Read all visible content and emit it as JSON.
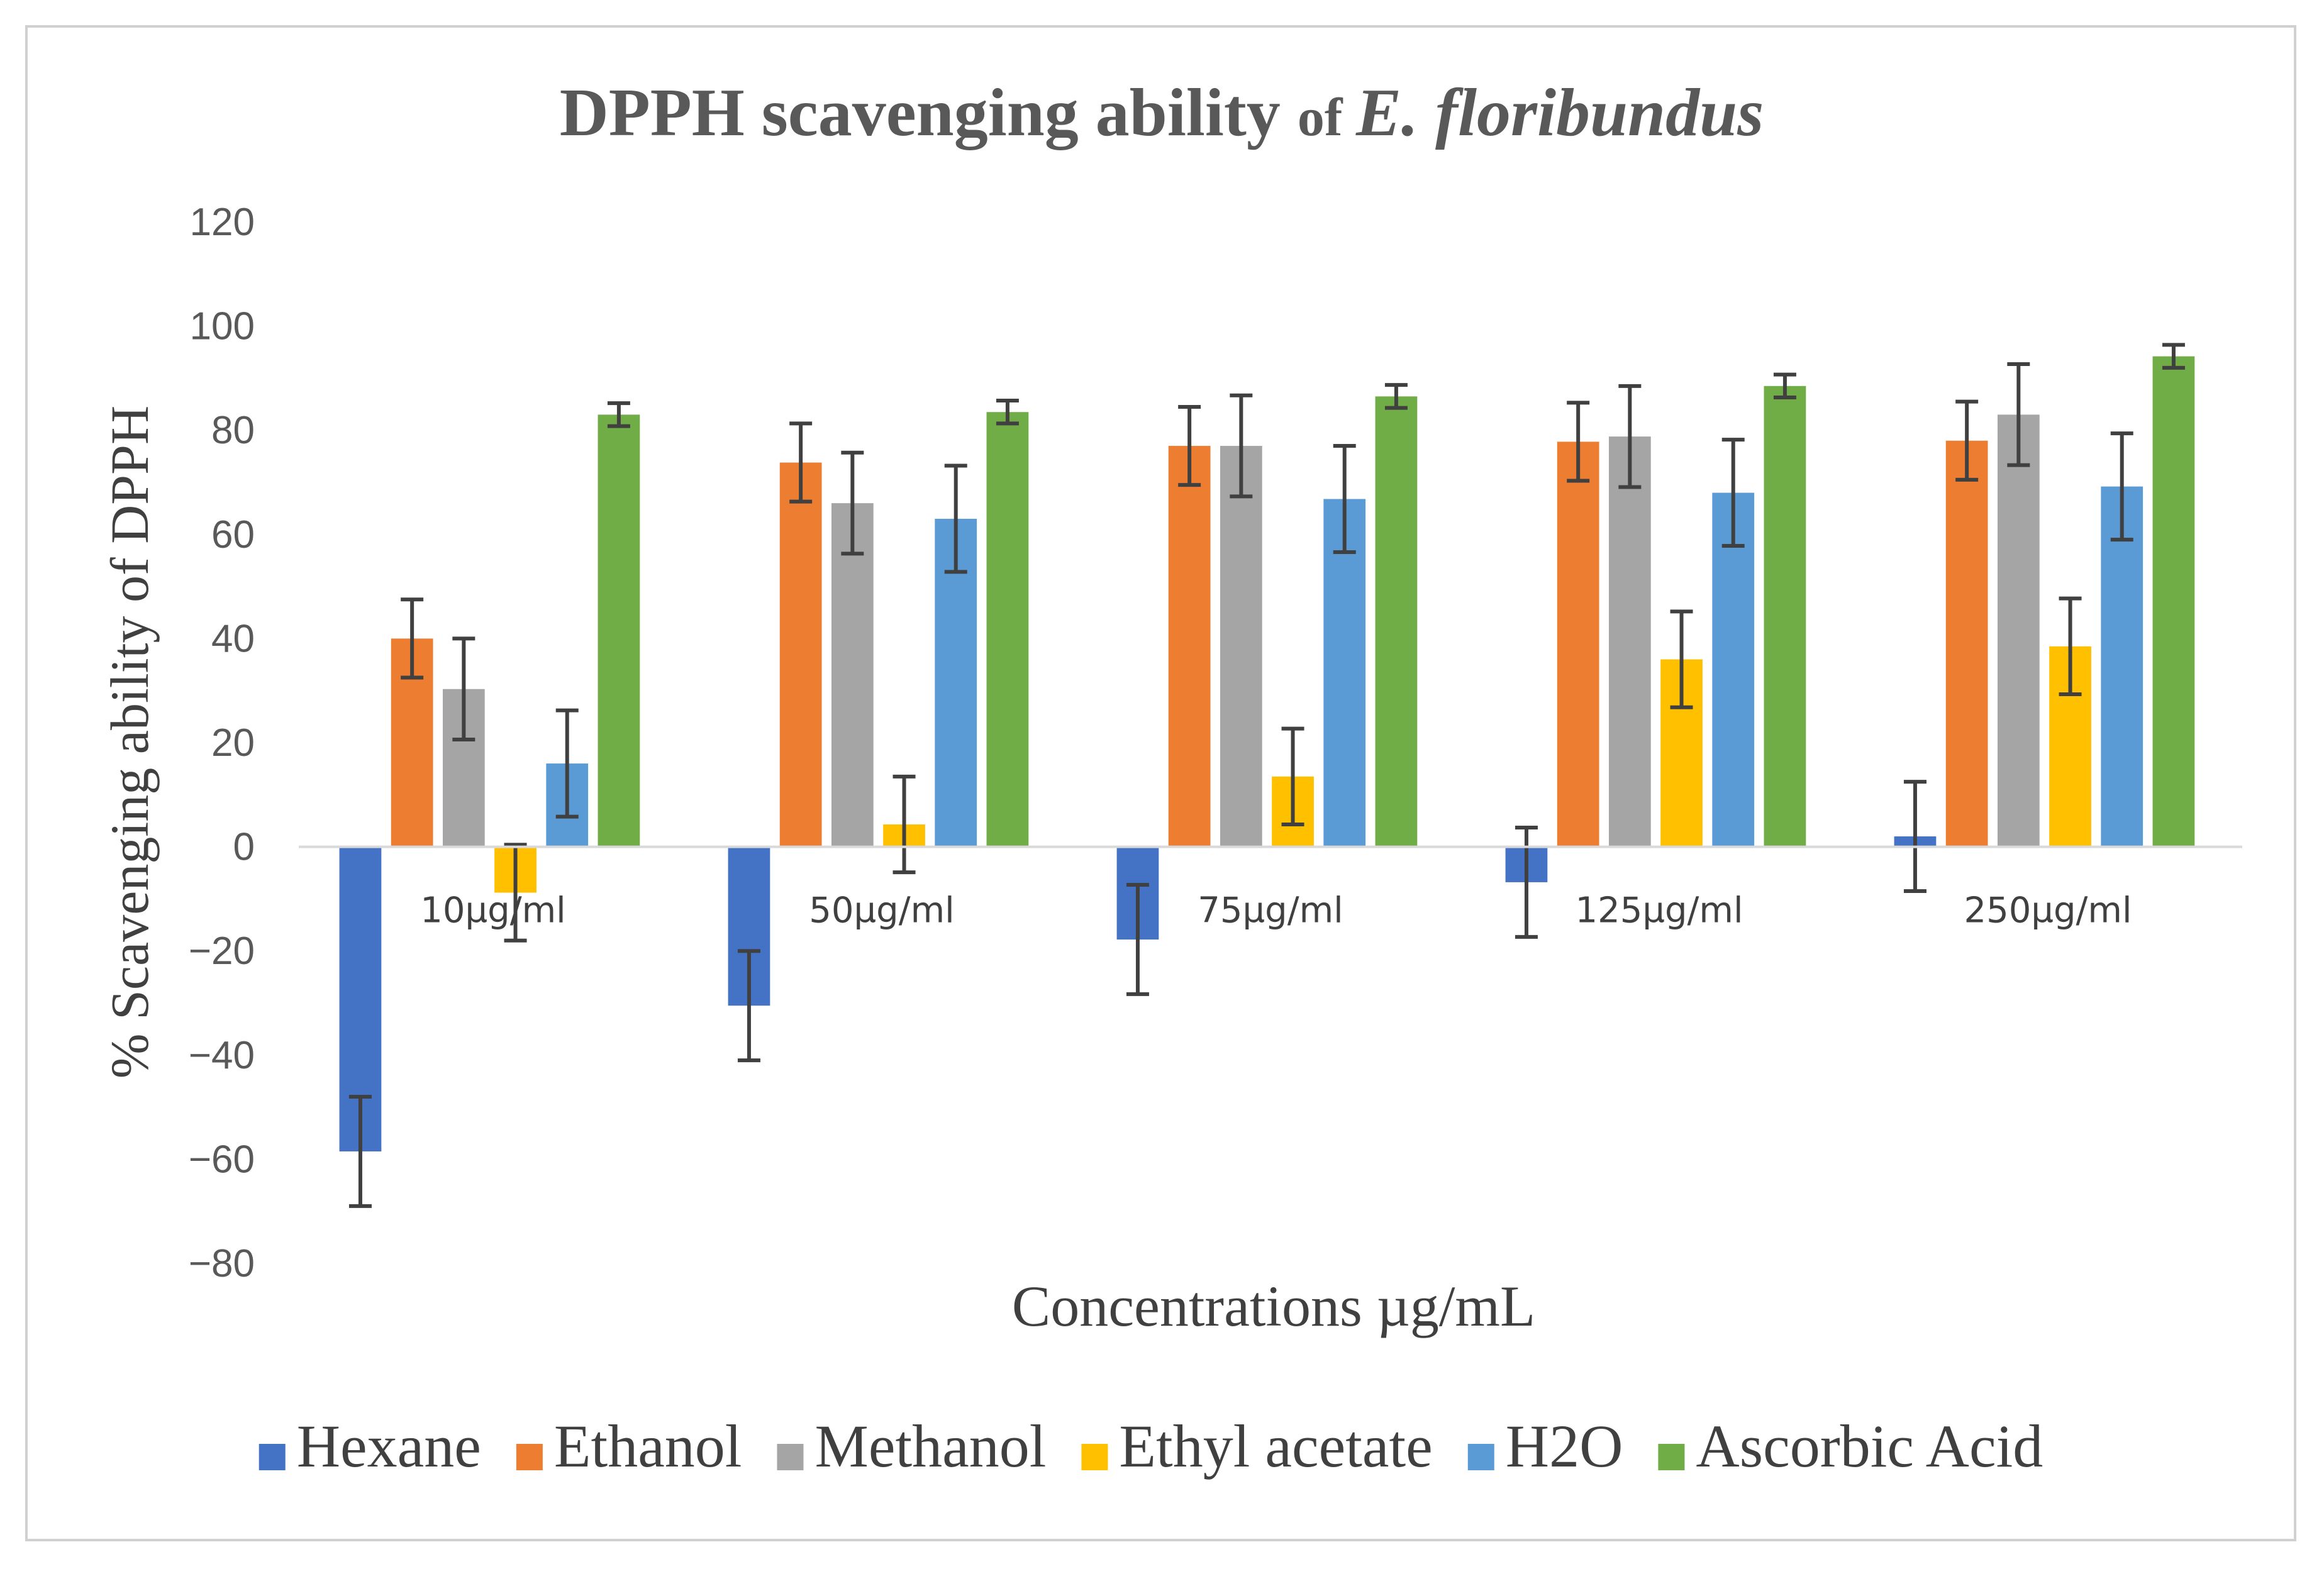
{
  "chart_data": {
    "type": "bar",
    "title": {
      "part1": "DPPH scavenging ability ",
      "part2": "of ",
      "part3": "E. floribundus"
    },
    "xlabel": "Concentrations µg/mL",
    "ylabel": "% Scavenging ability of DPPH",
    "categories": [
      "10µg/ml",
      "50µg/ml",
      "75µg/ml",
      "125µg/ml",
      "250µg/ml"
    ],
    "ylim": [
      -80,
      120
    ],
    "yticks": [
      120,
      100,
      80,
      60,
      40,
      20,
      0,
      -20,
      -40,
      -60,
      -80
    ],
    "grid": false,
    "legend_position": "bottom",
    "series": [
      {
        "name": "Hexane",
        "color": "#4472C4",
        "values": [
          -58.5,
          -30.5,
          -17.8,
          -6.8,
          2.0
        ],
        "errors": [
          10.5,
          10.5,
          10.5,
          10.5,
          10.5
        ]
      },
      {
        "name": "Ethanol",
        "color": "#ED7D31",
        "values": [
          40.0,
          73.8,
          77.0,
          77.8,
          78.0
        ],
        "errors": [
          7.5,
          7.5,
          7.5,
          7.5,
          7.5
        ]
      },
      {
        "name": "Methanol",
        "color": "#A5A5A5",
        "values": [
          30.3,
          66.0,
          77.0,
          78.8,
          83.0
        ],
        "errors": [
          9.7,
          9.7,
          9.7,
          9.7,
          9.7
        ]
      },
      {
        "name": "Ethyl acetate",
        "color": "#FFC000",
        "values": [
          -8.8,
          4.3,
          13.5,
          36.0,
          38.5
        ],
        "errors": [
          9.2,
          9.2,
          9.2,
          9.2,
          9.2
        ]
      },
      {
        "name": "H2O",
        "color": "#5B9BD5",
        "values": [
          16.0,
          63.0,
          66.8,
          68.0,
          69.2
        ],
        "errors": [
          10.2,
          10.2,
          10.2,
          10.2,
          10.2
        ]
      },
      {
        "name": "Ascorbic Acid",
        "color": "#70AD47",
        "values": [
          83.0,
          83.5,
          86.5,
          88.5,
          94.2
        ],
        "errors": [
          2.2,
          2.2,
          2.2,
          2.2,
          2.2
        ]
      }
    ]
  }
}
